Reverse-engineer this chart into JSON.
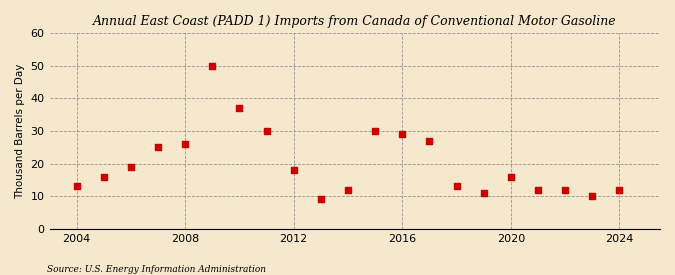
{
  "title": "Annual East Coast (PADD 1) Imports from Canada of Conventional Motor Gasoline",
  "ylabel": "Thousand Barrels per Day",
  "source": "Source: U.S. Energy Information Administration",
  "background_color": "#f5e8cd",
  "plot_background_color": "#f5e8cd",
  "marker_color": "#cc0000",
  "marker": "s",
  "marker_size": 16,
  "xlim": [
    2003.0,
    2025.5
  ],
  "ylim": [
    0,
    60
  ],
  "xticks": [
    2004,
    2008,
    2012,
    2016,
    2020,
    2024
  ],
  "yticks": [
    0,
    10,
    20,
    30,
    40,
    50,
    60
  ],
  "years": [
    2004,
    2005,
    2006,
    2007,
    2008,
    2009,
    2010,
    2011,
    2012,
    2013,
    2014,
    2015,
    2016,
    2017,
    2018,
    2019,
    2020,
    2021,
    2022,
    2023,
    2024
  ],
  "values": [
    13,
    16,
    19,
    25,
    26,
    50,
    37,
    30,
    18,
    9,
    12,
    30,
    29,
    27,
    13,
    11,
    16,
    12,
    12,
    10,
    12
  ]
}
